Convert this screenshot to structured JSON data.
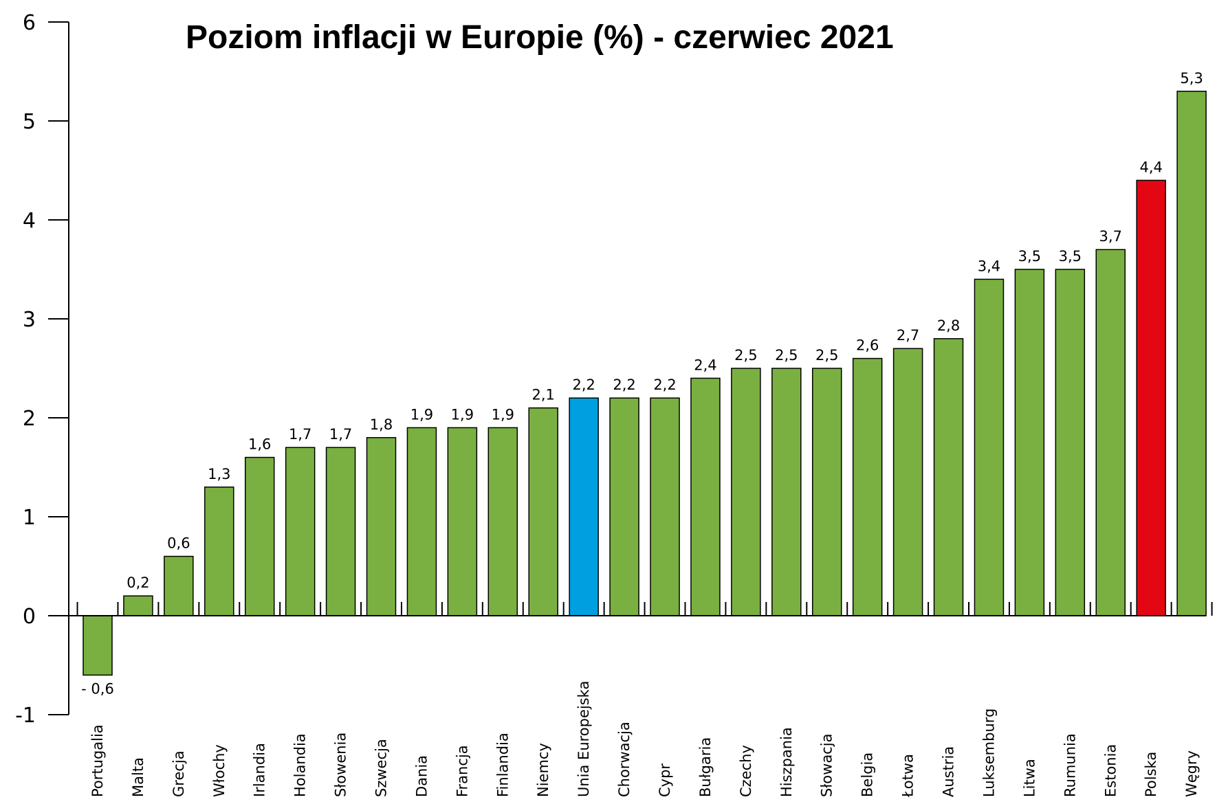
{
  "chart_data": {
    "type": "bar",
    "title": "Poziom inflacji w Europie (%) - czerwiec 2021",
    "xlabel": "",
    "ylabel": "",
    "ylim": [
      -1,
      6
    ],
    "yticks": [
      "6",
      "5",
      "4",
      "3",
      "2",
      "1",
      "0",
      "-1"
    ],
    "grid": false,
    "categories": [
      "Portugalia",
      "Malta",
      "Grecja",
      "Włochy",
      "Irlandia",
      "Holandia",
      "Słowenia",
      "Szwecja",
      "Dania",
      "Francja",
      "Finlandia",
      "Niemcy",
      "Unia Europejska",
      "Chorwacja",
      "Cypr",
      "Bułgaria",
      "Czechy",
      "Hiszpania",
      "Słowacja",
      "Belgia",
      "Łotwa",
      "Austria",
      "Luksemburg",
      "Litwa",
      "Rumunia",
      "Estonia",
      "Polska",
      "Węgry"
    ],
    "values": [
      -0.6,
      0.2,
      0.6,
      1.3,
      1.6,
      1.7,
      1.7,
      1.8,
      1.9,
      1.9,
      1.9,
      2.1,
      2.2,
      2.2,
      2.2,
      2.4,
      2.5,
      2.5,
      2.5,
      2.6,
      2.7,
      2.8,
      3.4,
      3.5,
      3.5,
      3.7,
      4.4,
      5.3
    ],
    "value_labels": [
      "- 0,6",
      "0,2",
      "0,6",
      "1,3",
      "1,6",
      "1,7",
      "1,7",
      "1,8",
      "1,9",
      "1,9",
      "1,9",
      "2,1",
      "2,2",
      "2,2",
      "2,2",
      "2,4",
      "2,5",
      "2,5",
      "2,5",
      "2,6",
      "2,7",
      "2,8",
      "3,4",
      "3,5",
      "3,5",
      "3,7",
      "4,4",
      "5,3"
    ],
    "colors": {
      "default": "#7ab041",
      "highlight_eu": "#00a0e0",
      "highlight_pl": "#e30613"
    },
    "bar_colors": [
      "default",
      "default",
      "default",
      "default",
      "default",
      "default",
      "default",
      "default",
      "default",
      "default",
      "default",
      "default",
      "highlight_eu",
      "default",
      "default",
      "default",
      "default",
      "default",
      "default",
      "default",
      "default",
      "default",
      "default",
      "default",
      "default",
      "default",
      "highlight_pl",
      "default"
    ]
  }
}
